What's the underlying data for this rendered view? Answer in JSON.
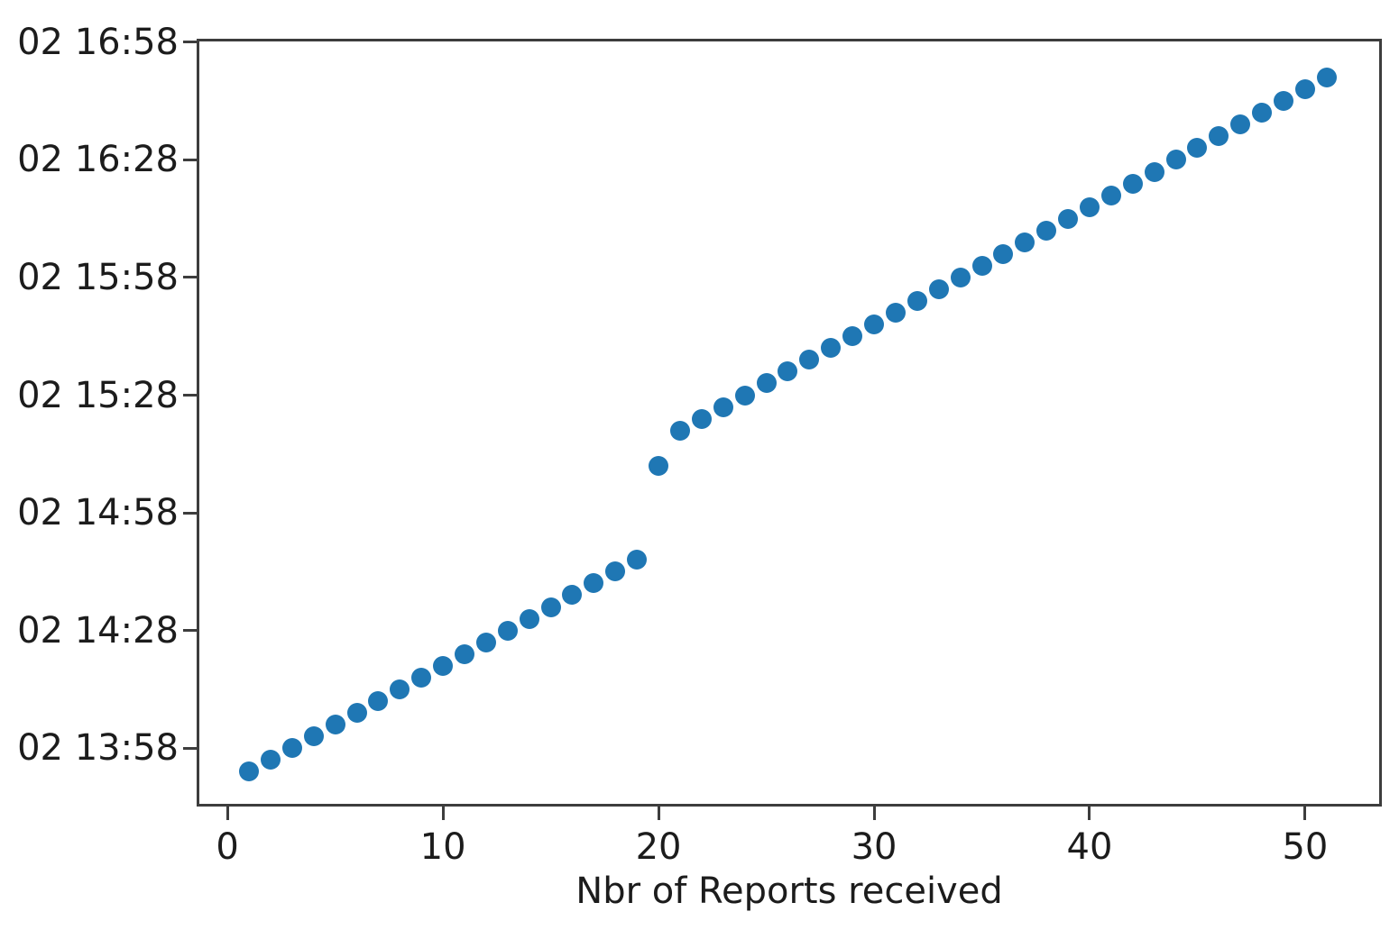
{
  "figure": {
    "background_color": "#ffffff",
    "spine_color": "#3d3d3d",
    "tick_text_color": "#1c1c1c"
  },
  "chart_data": {
    "type": "scatter",
    "title": "",
    "xlabel": "Nbr of Reports received",
    "ylabel": "",
    "legend": null,
    "grid": false,
    "marker_color": "#1f77b4",
    "marker_shape": "circle",
    "x_axis": {
      "ticks": [
        0,
        10,
        20,
        30,
        40,
        50
      ],
      "lim": [
        -1.43,
        53.56
      ]
    },
    "y_axis": {
      "unit": "time of day (day 02), minutes since 13:00",
      "tick_labels": [
        "02 13:58",
        "02 14:28",
        "02 14:58",
        "02 15:28",
        "02 15:58",
        "02 16:28",
        "02 16:58"
      ],
      "tick_values_minutes": [
        58,
        88,
        118,
        148,
        178,
        208,
        238
      ],
      "lim_minutes": [
        43.1,
        238.9
      ]
    },
    "points": [
      {
        "x": 1,
        "time": "13:52"
      },
      {
        "x": 2,
        "time": "13:55"
      },
      {
        "x": 3,
        "time": "13:58"
      },
      {
        "x": 4,
        "time": "14:01"
      },
      {
        "x": 5,
        "time": "14:04"
      },
      {
        "x": 6,
        "time": "14:07"
      },
      {
        "x": 7,
        "time": "14:10"
      },
      {
        "x": 8,
        "time": "14:13"
      },
      {
        "x": 9,
        "time": "14:16"
      },
      {
        "x": 10,
        "time": "14:19"
      },
      {
        "x": 11,
        "time": "14:22"
      },
      {
        "x": 12,
        "time": "14:25"
      },
      {
        "x": 13,
        "time": "14:28"
      },
      {
        "x": 14,
        "time": "14:31"
      },
      {
        "x": 15,
        "time": "14:34"
      },
      {
        "x": 16,
        "time": "14:37"
      },
      {
        "x": 17,
        "time": "14:40"
      },
      {
        "x": 18,
        "time": "14:43"
      },
      {
        "x": 19,
        "time": "14:46"
      },
      {
        "x": 20,
        "time": "15:10"
      },
      {
        "x": 21,
        "time": "15:19"
      },
      {
        "x": 22,
        "time": "15:22"
      },
      {
        "x": 23,
        "time": "15:25"
      },
      {
        "x": 24,
        "time": "15:28"
      },
      {
        "x": 25,
        "time": "15:31"
      },
      {
        "x": 26,
        "time": "15:34"
      },
      {
        "x": 27,
        "time": "15:37"
      },
      {
        "x": 28,
        "time": "15:40"
      },
      {
        "x": 29,
        "time": "15:43"
      },
      {
        "x": 30,
        "time": "15:46"
      },
      {
        "x": 31,
        "time": "15:49"
      },
      {
        "x": 32,
        "time": "15:52"
      },
      {
        "x": 33,
        "time": "15:55"
      },
      {
        "x": 34,
        "time": "15:58"
      },
      {
        "x": 35,
        "time": "16:01"
      },
      {
        "x": 36,
        "time": "16:04"
      },
      {
        "x": 37,
        "time": "16:07"
      },
      {
        "x": 38,
        "time": "16:10"
      },
      {
        "x": 39,
        "time": "16:13"
      },
      {
        "x": 40,
        "time": "16:16"
      },
      {
        "x": 41,
        "time": "16:19"
      },
      {
        "x": 42,
        "time": "16:22"
      },
      {
        "x": 43,
        "time": "16:25"
      },
      {
        "x": 44,
        "time": "16:28"
      },
      {
        "x": 45,
        "time": "16:31"
      },
      {
        "x": 46,
        "time": "16:34"
      },
      {
        "x": 47,
        "time": "16:37"
      },
      {
        "x": 48,
        "time": "16:40"
      },
      {
        "x": 49,
        "time": "16:43"
      },
      {
        "x": 50,
        "time": "16:46"
      },
      {
        "x": 51,
        "time": "16:49"
      }
    ]
  }
}
